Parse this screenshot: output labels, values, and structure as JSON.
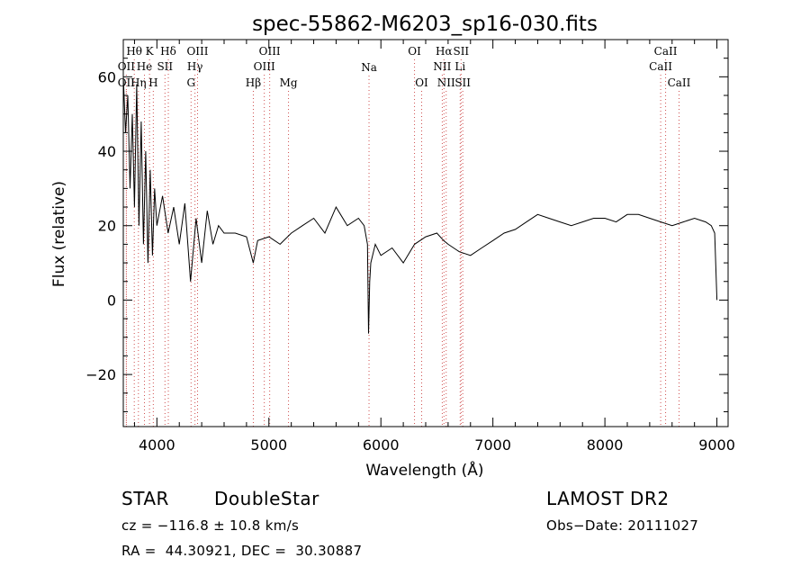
{
  "chart_data": {
    "type": "line",
    "title": "spec-55862-M6203_sp16-030.fits",
    "xlabel": "Wavelength (Å)",
    "ylabel": "Flux (relative)",
    "xlim": [
      3700,
      9100
    ],
    "ylim": [
      -34,
      70
    ],
    "xticks": [
      4000,
      5000,
      6000,
      7000,
      8000,
      9000
    ],
    "yticks": [
      -20,
      0,
      20,
      40,
      60
    ],
    "grid": false,
    "line_color": "#000000",
    "marker_line_color": "#d05050",
    "series": [
      {
        "x": [
          3700,
          3720,
          3740,
          3760,
          3780,
          3800,
          3820,
          3840,
          3860,
          3880,
          3900,
          3920,
          3940,
          3960,
          3980,
          4000,
          4050,
          4100,
          4150,
          4200,
          4250,
          4300,
          4350,
          4400,
          4450,
          4500,
          4550,
          4600,
          4700,
          4800,
          4860,
          4900,
          5000,
          5100,
          5200,
          5300,
          5400,
          5500,
          5600,
          5700,
          5800,
          5850,
          5880,
          5890,
          5900,
          5910,
          5950,
          6000,
          6100,
          6200,
          6300,
          6400,
          6500,
          6560,
          6600,
          6700,
          6800,
          6900,
          7000,
          7100,
          7200,
          7300,
          7400,
          7500,
          7600,
          7700,
          7800,
          7900,
          8000,
          8100,
          8200,
          8300,
          8400,
          8500,
          8600,
          8700,
          8800,
          8900,
          8950,
          8980,
          9000
        ],
        "y": [
          60,
          45,
          55,
          30,
          50,
          25,
          58,
          20,
          48,
          15,
          40,
          10,
          35,
          12,
          30,
          20,
          28,
          18,
          25,
          15,
          26,
          5,
          22,
          10,
          24,
          15,
          20,
          18,
          18,
          17,
          10,
          16,
          17,
          15,
          18,
          20,
          22,
          18,
          25,
          20,
          22,
          20,
          15,
          -9,
          5,
          10,
          15,
          12,
          14,
          10,
          15,
          17,
          18,
          16,
          15,
          13,
          12,
          14,
          16,
          18,
          19,
          21,
          23,
          22,
          21,
          20,
          21,
          22,
          22,
          21,
          23,
          23,
          22,
          21,
          20,
          21,
          22,
          21,
          20,
          18,
          0
        ]
      }
    ],
    "line_labels": [
      {
        "text": "OII",
        "x": 3727,
        "row": 2
      },
      {
        "text": "OII",
        "x": 3727,
        "row": 4
      },
      {
        "text": "Hθ",
        "x": 3798,
        "row": 1
      },
      {
        "text": "Hη",
        "x": 3835,
        "row": 4
      },
      {
        "text": "He",
        "x": 3889,
        "row": 2
      },
      {
        "text": "K",
        "x": 3934,
        "row": 1
      },
      {
        "text": "H",
        "x": 3968,
        "row": 4
      },
      {
        "text": "SII",
        "x": 4072,
        "row": 2
      },
      {
        "text": "Hδ",
        "x": 4102,
        "row": 1
      },
      {
        "text": "Hγ",
        "x": 4340,
        "row": 2
      },
      {
        "text": "OIII",
        "x": 4363,
        "row": 1
      },
      {
        "text": "G",
        "x": 4305,
        "row": 4
      },
      {
        "text": "Hβ",
        "x": 4861,
        "row": 4
      },
      {
        "text": "OIII",
        "x": 4959,
        "row": 2
      },
      {
        "text": "OIII",
        "x": 5007,
        "row": 1
      },
      {
        "text": "Mg",
        "x": 5175,
        "row": 4
      },
      {
        "text": "Na",
        "x": 5894,
        "row": 3
      },
      {
        "text": "OI",
        "x": 6300,
        "row": 1
      },
      {
        "text": "OI",
        "x": 6364,
        "row": 4
      },
      {
        "text": "NII",
        "x": 6548,
        "row": 2
      },
      {
        "text": "Hα",
        "x": 6563,
        "row": 1
      },
      {
        "text": "NII",
        "x": 6583,
        "row": 4
      },
      {
        "text": "SII",
        "x": 6716,
        "row": 1
      },
      {
        "text": "Li",
        "x": 6708,
        "row": 2
      },
      {
        "text": "SII",
        "x": 6731,
        "row": 4
      },
      {
        "text": "CaII",
        "x": 8498,
        "row": 2
      },
      {
        "text": "CaII",
        "x": 8542,
        "row": 1
      },
      {
        "text": "CaII",
        "x": 8662,
        "row": 4
      }
    ]
  },
  "footer": {
    "class_label": "STAR",
    "subclass": "DoubleStar",
    "survey": "LAMOST DR2",
    "cz": "cz = −116.8 ± 10.8 km/s",
    "obs_date": "Obs−Date: 20111027",
    "coords": "RA =  44.30921, DEC =  30.30887"
  }
}
